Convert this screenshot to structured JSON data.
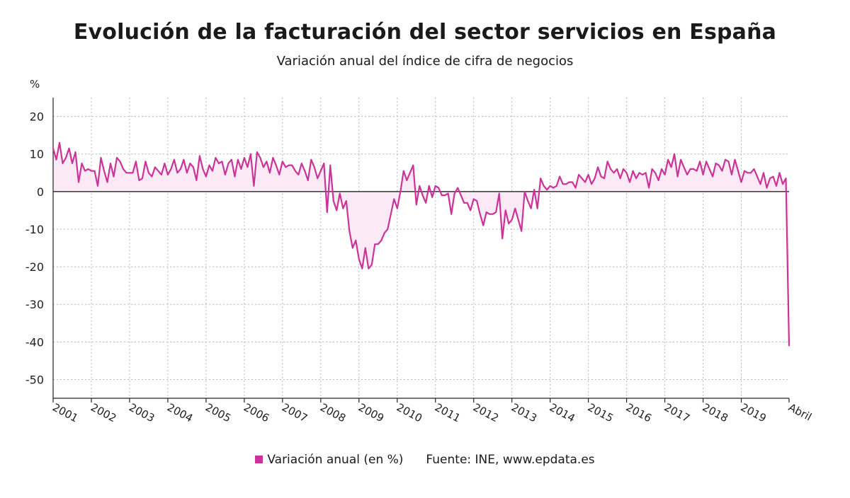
{
  "colors": {
    "series": "#cc3399",
    "fill": "#fbeaf5",
    "grid": "#b8b8b8",
    "axis": "#222222"
  },
  "chart_data": {
    "type": "line",
    "title": "Evolución de la facturación del sector servicios en España",
    "subtitle": "Variación anual del índice de cifra de negocios",
    "ylabel": "%",
    "ylim": [
      -55,
      25
    ],
    "yticks": [
      20,
      10,
      0,
      -10,
      -20,
      -30,
      -40,
      -50
    ],
    "xlim": [
      "2001-01",
      "2020-04"
    ],
    "x_tick_labels": [
      "2001",
      "2002",
      "2003",
      "2004",
      "2005",
      "2006",
      "2007",
      "2008",
      "2009",
      "2010",
      "2011",
      "2012",
      "2013",
      "2014",
      "2015",
      "2016",
      "2017",
      "2018",
      "2019",
      "Abril"
    ],
    "grid": true,
    "legend_position": "bottom",
    "source": "Fuente: INE, www.epdata.es",
    "series": [
      {
        "name": "Variación anual (en %)",
        "points": [
          [
            "2001-01",
            11.5
          ],
          [
            "2001-02",
            8.5
          ],
          [
            "2001-03",
            13
          ],
          [
            "2001-04",
            7.5
          ],
          [
            "2001-05",
            9
          ],
          [
            "2001-06",
            11.5
          ],
          [
            "2001-07",
            7.5
          ],
          [
            "2001-08",
            10.5
          ],
          [
            "2001-09",
            2.5
          ],
          [
            "2001-10",
            7.5
          ],
          [
            "2001-11",
            5.5
          ],
          [
            "2001-12",
            6
          ],
          [
            "2002-01",
            5.5
          ],
          [
            "2002-02",
            5.5
          ],
          [
            "2002-03",
            1.5
          ],
          [
            "2002-04",
            9
          ],
          [
            "2002-05",
            5.5
          ],
          [
            "2002-06",
            2.5
          ],
          [
            "2002-07",
            7.5
          ],
          [
            "2002-08",
            4
          ],
          [
            "2002-09",
            9
          ],
          [
            "2002-10",
            8
          ],
          [
            "2002-11",
            6
          ],
          [
            "2002-12",
            5
          ],
          [
            "2003-01",
            5
          ],
          [
            "2003-02",
            5
          ],
          [
            "2003-03",
            8
          ],
          [
            "2003-04",
            3
          ],
          [
            "2003-05",
            3.5
          ],
          [
            "2003-06",
            8
          ],
          [
            "2003-07",
            5
          ],
          [
            "2003-08",
            4
          ],
          [
            "2003-09",
            6.5
          ],
          [
            "2003-10",
            5.5
          ],
          [
            "2003-11",
            4.5
          ],
          [
            "2003-12",
            7.5
          ],
          [
            "2004-01",
            4.5
          ],
          [
            "2004-02",
            6
          ],
          [
            "2004-03",
            8.5
          ],
          [
            "2004-04",
            5
          ],
          [
            "2004-05",
            6
          ],
          [
            "2004-06",
            8.5
          ],
          [
            "2004-07",
            5
          ],
          [
            "2004-08",
            7.5
          ],
          [
            "2004-09",
            6.5
          ],
          [
            "2004-10",
            3
          ],
          [
            "2004-11",
            9.5
          ],
          [
            "2004-12",
            6
          ],
          [
            "2005-01",
            4
          ],
          [
            "2005-02",
            7
          ],
          [
            "2005-03",
            5.5
          ],
          [
            "2005-04",
            9
          ],
          [
            "2005-05",
            7.5
          ],
          [
            "2005-06",
            8
          ],
          [
            "2005-07",
            4.5
          ],
          [
            "2005-08",
            7.5
          ],
          [
            "2005-09",
            8.5
          ],
          [
            "2005-10",
            4
          ],
          [
            "2005-11",
            8.5
          ],
          [
            "2005-12",
            6
          ],
          [
            "2006-01",
            9
          ],
          [
            "2006-02",
            6.5
          ],
          [
            "2006-03",
            10
          ],
          [
            "2006-04",
            1.5
          ],
          [
            "2006-05",
            10.5
          ],
          [
            "2006-06",
            9
          ],
          [
            "2006-07",
            6.5
          ],
          [
            "2006-08",
            8
          ],
          [
            "2006-09",
            5
          ],
          [
            "2006-10",
            9
          ],
          [
            "2006-11",
            7
          ],
          [
            "2006-12",
            4.5
          ],
          [
            "2007-01",
            8
          ],
          [
            "2007-02",
            6.5
          ],
          [
            "2007-03",
            7
          ],
          [
            "2007-04",
            7
          ],
          [
            "2007-05",
            5.5
          ],
          [
            "2007-06",
            4.5
          ],
          [
            "2007-07",
            7.5
          ],
          [
            "2007-08",
            5.5
          ],
          [
            "2007-09",
            3
          ],
          [
            "2007-10",
            8.5
          ],
          [
            "2007-11",
            6.5
          ],
          [
            "2007-12",
            3.5
          ],
          [
            "2008-01",
            5.5
          ],
          [
            "2008-02",
            7.5
          ],
          [
            "2008-03",
            -5.5
          ],
          [
            "2008-04",
            7
          ],
          [
            "2008-05",
            -2.5
          ],
          [
            "2008-06",
            -5
          ],
          [
            "2008-07",
            -0.5
          ],
          [
            "2008-08",
            -4.5
          ],
          [
            "2008-09",
            -2.5
          ],
          [
            "2008-10",
            -10.5
          ],
          [
            "2008-11",
            -15
          ],
          [
            "2008-12",
            -13
          ],
          [
            "2009-01",
            -18
          ],
          [
            "2009-02",
            -20.5
          ],
          [
            "2009-03",
            -15
          ],
          [
            "2009-04",
            -20.5
          ],
          [
            "2009-05",
            -19.5
          ],
          [
            "2009-06",
            -14
          ],
          [
            "2009-07",
            -14
          ],
          [
            "2009-08",
            -13
          ],
          [
            "2009-09",
            -11
          ],
          [
            "2009-10",
            -10
          ],
          [
            "2009-11",
            -6
          ],
          [
            "2009-12",
            -2
          ],
          [
            "2010-01",
            -4.5
          ],
          [
            "2010-02",
            0
          ],
          [
            "2010-03",
            5.5
          ],
          [
            "2010-04",
            3
          ],
          [
            "2010-05",
            5
          ],
          [
            "2010-06",
            7
          ],
          [
            "2010-07",
            -3.5
          ],
          [
            "2010-08",
            1.5
          ],
          [
            "2010-09",
            -1
          ],
          [
            "2010-10",
            -3
          ],
          [
            "2010-11",
            1.5
          ],
          [
            "2010-12",
            -1.5
          ],
          [
            "2011-01",
            1.5
          ],
          [
            "2011-02",
            1
          ],
          [
            "2011-03",
            -1
          ],
          [
            "2011-04",
            -1
          ],
          [
            "2011-05",
            -0.5
          ],
          [
            "2011-06",
            -6
          ],
          [
            "2011-07",
            -0.5
          ],
          [
            "2011-08",
            1
          ],
          [
            "2011-09",
            -1
          ],
          [
            "2011-10",
            -3
          ],
          [
            "2011-11",
            -3
          ],
          [
            "2011-12",
            -5
          ],
          [
            "2012-01",
            -2
          ],
          [
            "2012-02",
            -2.5
          ],
          [
            "2012-03",
            -6
          ],
          [
            "2012-04",
            -9
          ],
          [
            "2012-05",
            -5.5
          ],
          [
            "2012-06",
            -6
          ],
          [
            "2012-07",
            -6
          ],
          [
            "2012-08",
            -5.5
          ],
          [
            "2012-09",
            -0.5
          ],
          [
            "2012-10",
            -12.5
          ],
          [
            "2012-11",
            -5
          ],
          [
            "2012-12",
            -8.5
          ],
          [
            "2013-01",
            -7.5
          ],
          [
            "2013-02",
            -4.5
          ],
          [
            "2013-03",
            -7.5
          ],
          [
            "2013-04",
            -10.5
          ],
          [
            "2013-05",
            0
          ],
          [
            "2013-06",
            -2.5
          ],
          [
            "2013-07",
            -4.5
          ],
          [
            "2013-08",
            0.5
          ],
          [
            "2013-09",
            -4.5
          ],
          [
            "2013-10",
            3.5
          ],
          [
            "2013-11",
            1.5
          ],
          [
            "2013-12",
            0.5
          ],
          [
            "2014-01",
            1.5
          ],
          [
            "2014-02",
            1
          ],
          [
            "2014-03",
            1.5
          ],
          [
            "2014-04",
            4
          ],
          [
            "2014-05",
            2
          ],
          [
            "2014-06",
            2
          ],
          [
            "2014-07",
            2.5
          ],
          [
            "2014-08",
            2.5
          ],
          [
            "2014-09",
            1
          ],
          [
            "2014-10",
            4.5
          ],
          [
            "2014-11",
            3.5
          ],
          [
            "2014-12",
            2.5
          ],
          [
            "2015-01",
            4.5
          ],
          [
            "2015-02",
            2
          ],
          [
            "2015-03",
            3.5
          ],
          [
            "2015-04",
            6.5
          ],
          [
            "2015-05",
            4
          ],
          [
            "2015-06",
            3.5
          ],
          [
            "2015-07",
            8
          ],
          [
            "2015-08",
            6
          ],
          [
            "2015-09",
            5
          ],
          [
            "2015-10",
            6
          ],
          [
            "2015-11",
            3.5
          ],
          [
            "2015-12",
            6
          ],
          [
            "2016-01",
            5
          ],
          [
            "2016-02",
            2.5
          ],
          [
            "2016-03",
            5.5
          ],
          [
            "2016-04",
            3.5
          ],
          [
            "2016-05",
            5
          ],
          [
            "2016-06",
            4.5
          ],
          [
            "2016-07",
            5
          ],
          [
            "2016-08",
            1
          ],
          [
            "2016-09",
            6
          ],
          [
            "2016-10",
            5
          ],
          [
            "2016-11",
            3
          ],
          [
            "2016-12",
            6
          ],
          [
            "2017-01",
            4.5
          ],
          [
            "2017-02",
            8.5
          ],
          [
            "2017-03",
            6.5
          ],
          [
            "2017-04",
            10
          ],
          [
            "2017-05",
            4
          ],
          [
            "2017-06",
            8.5
          ],
          [
            "2017-07",
            6.5
          ],
          [
            "2017-08",
            4.5
          ],
          [
            "2017-09",
            6
          ],
          [
            "2017-10",
            6
          ],
          [
            "2017-11",
            5.5
          ],
          [
            "2017-12",
            8
          ],
          [
            "2018-01",
            4.5
          ],
          [
            "2018-02",
            8
          ],
          [
            "2018-03",
            6
          ],
          [
            "2018-04",
            4
          ],
          [
            "2018-05",
            7.5
          ],
          [
            "2018-06",
            7
          ],
          [
            "2018-07",
            5.5
          ],
          [
            "2018-08",
            8.5
          ],
          [
            "2018-09",
            8
          ],
          [
            "2018-10",
            4.5
          ],
          [
            "2018-11",
            8.5
          ],
          [
            "2018-12",
            5.5
          ],
          [
            "2019-01",
            2.5
          ],
          [
            "2019-02",
            5.5
          ],
          [
            "2019-03",
            5
          ],
          [
            "2019-04",
            5
          ],
          [
            "2019-05",
            6
          ],
          [
            "2019-06",
            4
          ],
          [
            "2019-07",
            2
          ],
          [
            "2019-08",
            5
          ],
          [
            "2019-09",
            1
          ],
          [
            "2019-10",
            3.5
          ],
          [
            "2019-11",
            4
          ],
          [
            "2019-12",
            1.5
          ],
          [
            "2020-01",
            5
          ],
          [
            "2020-02",
            2
          ],
          [
            "2020-03",
            3.5
          ],
          [
            "2020-04",
            -41
          ]
        ]
      }
    ]
  }
}
